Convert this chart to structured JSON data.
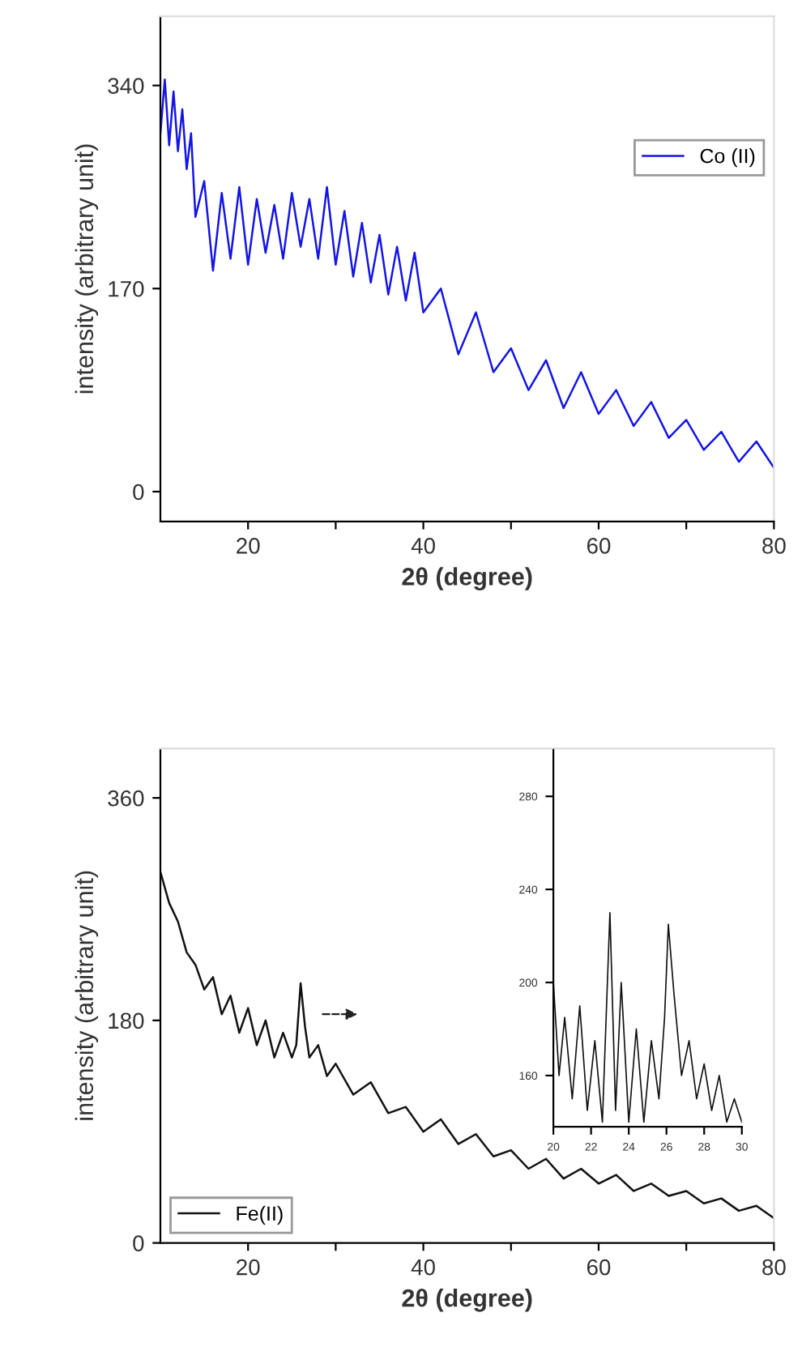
{
  "chart_data": [
    {
      "type": "line",
      "xlabel": "2θ (degree)",
      "ylabel": "intensity (arbitrary unit)",
      "xlim": [
        10,
        80
      ],
      "ylim": [
        -25,
        398
      ],
      "xticks": [
        20,
        {
          "value": 30,
          "label": null
        },
        40,
        {
          "value": 50,
          "label": null
        },
        60,
        {
          "value": 70,
          "label": null
        },
        80
      ],
      "yticks": [
        0,
        170,
        340
      ],
      "legend": "right",
      "grid": false,
      "series": [
        {
          "name": "Co (II)",
          "color": "#1414e6",
          "x": [
            10,
            10.5,
            11,
            11.5,
            12,
            12.5,
            13,
            13.5,
            14,
            15,
            16,
            17,
            18,
            19,
            20,
            21,
            22,
            23,
            24,
            25,
            26,
            27,
            28,
            29,
            30,
            31,
            32,
            33,
            34,
            35,
            36,
            37,
            38,
            39,
            40,
            42,
            44,
            46,
            48,
            50,
            52,
            54,
            56,
            58,
            60,
            62,
            64,
            66,
            68,
            70,
            72,
            74,
            76,
            78,
            80
          ],
          "values": [
            300,
            345,
            290,
            335,
            285,
            320,
            270,
            300,
            230,
            260,
            185,
            250,
            195,
            255,
            190,
            245,
            200,
            240,
            195,
            250,
            205,
            245,
            195,
            255,
            190,
            235,
            180,
            225,
            175,
            215,
            165,
            205,
            160,
            200,
            150,
            170,
            115,
            150,
            100,
            120,
            85,
            110,
            70,
            100,
            65,
            85,
            55,
            75,
            45,
            60,
            35,
            50,
            25,
            42,
            20
          ]
        }
      ]
    },
    {
      "type": "line",
      "xlabel": "2θ (degree)",
      "ylabel": "intensity (arbitrary unit)",
      "xlim": [
        10,
        80
      ],
      "ylim": [
        0,
        400
      ],
      "xticks": [
        20,
        {
          "value": 30,
          "label": null
        },
        40,
        {
          "value": 50,
          "label": null
        },
        60,
        {
          "value": 70,
          "label": null
        },
        80
      ],
      "yticks": [
        0,
        180,
        360
      ],
      "legend": "lower left",
      "grid": false,
      "series": [
        {
          "name": "Fe(II)",
          "color": "#111111",
          "x": [
            10,
            11,
            12,
            13,
            14,
            15,
            16,
            17,
            18,
            19,
            20,
            21,
            22,
            23,
            24,
            25,
            25.5,
            26,
            26.5,
            27,
            28,
            29,
            30,
            32,
            34,
            36,
            38,
            40,
            42,
            44,
            46,
            48,
            50,
            52,
            54,
            56,
            58,
            60,
            62,
            64,
            66,
            68,
            70,
            72,
            74,
            76,
            78,
            80
          ],
          "values": [
            300,
            275,
            260,
            235,
            225,
            205,
            215,
            185,
            200,
            170,
            190,
            160,
            180,
            150,
            170,
            150,
            160,
            210,
            175,
            150,
            160,
            135,
            145,
            120,
            130,
            105,
            110,
            90,
            100,
            80,
            88,
            70,
            75,
            60,
            68,
            52,
            60,
            48,
            55,
            42,
            48,
            38,
            42,
            32,
            36,
            26,
            30,
            20
          ]
        }
      ]
    },
    {
      "type": "line",
      "xlim": [
        20,
        30
      ],
      "ylim": [
        138,
        300
      ],
      "xticks": [
        20,
        22,
        24,
        26,
        28,
        30
      ],
      "yticks": [
        160,
        200,
        240,
        280
      ],
      "grid": false,
      "series": [
        {
          "color": "#111111",
          "x": [
            20,
            20.3,
            20.6,
            21,
            21.4,
            21.8,
            22.2,
            22.6,
            23,
            23.3,
            23.6,
            24,
            24.4,
            24.8,
            25.2,
            25.6,
            25.9,
            26.1,
            26.4,
            26.8,
            27.2,
            27.6,
            28,
            28.4,
            28.8,
            29.2,
            29.6,
            30
          ],
          "values": [
            200,
            160,
            185,
            150,
            190,
            145,
            175,
            140,
            230,
            145,
            200,
            140,
            180,
            140,
            175,
            150,
            185,
            225,
            195,
            160,
            175,
            150,
            165,
            145,
            160,
            140,
            150,
            140
          ]
        }
      ]
    }
  ]
}
